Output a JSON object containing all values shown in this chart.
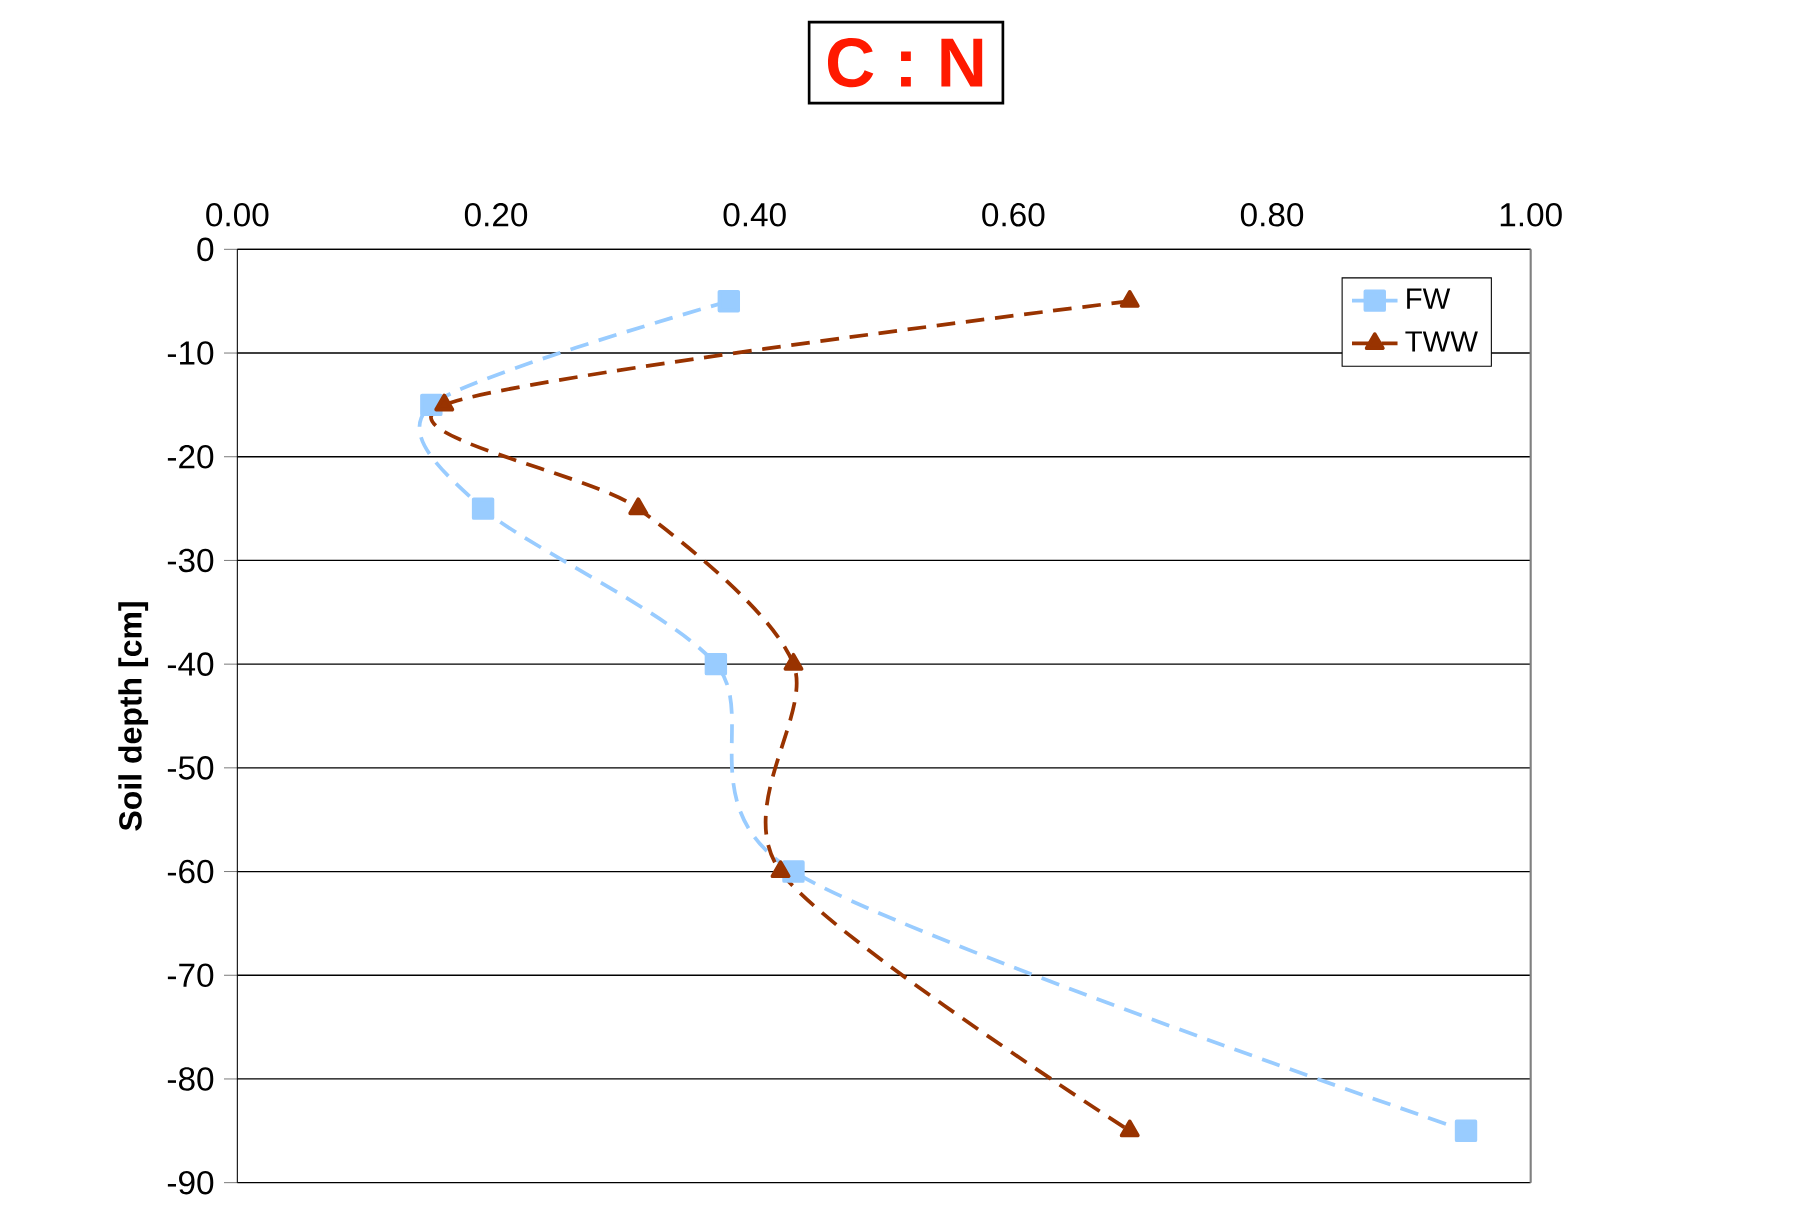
{
  "chart_data": {
    "type": "line",
    "title": "C : N",
    "ylabel": "Soil depth [cm]",
    "xlim": [
      0,
      1
    ],
    "xticks": [
      {
        "value": 0,
        "label": "0.00"
      },
      {
        "value": 0.2,
        "label": "0.20"
      },
      {
        "value": 0.4,
        "label": "0.40"
      },
      {
        "value": 0.6,
        "label": "0.60"
      },
      {
        "value": 0.8,
        "label": "0.80"
      },
      {
        "value": 1,
        "label": "1.00"
      }
    ],
    "ylim": [
      -90,
      0
    ],
    "yticks": [
      -90,
      -80,
      -70,
      -60,
      -50,
      -40,
      -30,
      -20,
      -10,
      0
    ],
    "grid": "y",
    "legend": "top right",
    "line_style": "dashed",
    "series": [
      {
        "name": "FW",
        "color": "#99ccff",
        "marker": "square",
        "x": [
          0.38,
          0.15,
          0.19,
          0.37,
          0.43,
          0.95
        ],
        "values": [
          -5,
          -15,
          -25,
          -40,
          -60,
          -85
        ]
      },
      {
        "name": "TWW",
        "color": "#993300",
        "marker": "triangle",
        "x": [
          0.69,
          0.16,
          0.31,
          0.43,
          0.42,
          0.69
        ],
        "values": [
          -5,
          -15,
          -25,
          -40,
          -60,
          -85
        ]
      }
    ]
  }
}
